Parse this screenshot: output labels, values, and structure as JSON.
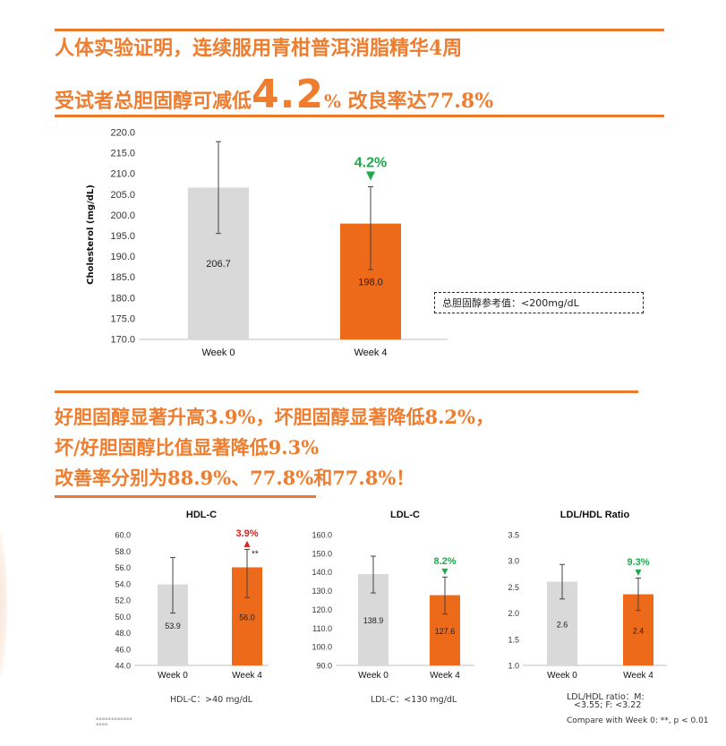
{
  "headlines": {
    "line1": "人体实验证明，连续服用青柑普洱消脂精华4周",
    "line2_prefix": "受试者总胆固醇可减低",
    "line2_big": "4.2",
    "line2_pct": "%",
    "line2_suffix": " 改良率达77.8%",
    "section2_line1": "好胆固醇显著升高3.9%，坏胆固醇显著降低8.2%，",
    "section2_line2": "坏/好胆固醇比值显著降低9.3%",
    "section2_line3": "改善率分别为88.9%、77.8%和77.8%！"
  },
  "colors": {
    "orange": "#ec6a1a",
    "headline_orange": "#ee7d2f",
    "gray_bar": "#d9d9d9",
    "green": "#1eaa4b",
    "red": "#e02020"
  },
  "reference_note": "总胆固醇参考值：<200mg/dL",
  "footnotes": {
    "hdl": "HDL-C：>40 mg/dL",
    "ldl": "LDL-C：<130 mg/dL",
    "ratio_line1": "LDL/HDL ratio：M:",
    "ratio_line2": "<3.55; F: <3.22",
    "compare": "Compare with Week 0: **, p < 0.01"
  },
  "chart_data": [
    {
      "type": "bar",
      "id": "total",
      "title": "",
      "ylabel": "Cholesterol (mg/dL)",
      "categories": [
        "Week 0",
        "Week 4"
      ],
      "values": [
        206.7,
        198.0
      ],
      "value_labels": [
        "206.7",
        "198.0"
      ],
      "errors": [
        [
          195.6,
          217.8
        ],
        [
          186.9,
          206.9
        ]
      ],
      "ylim": [
        170,
        220
      ],
      "yticks": [
        "170.0",
        "175.0",
        "180.0",
        "185.0",
        "190.0",
        "195.0",
        "200.0",
        "205.0",
        "210.0",
        "215.0",
        "220.0"
      ],
      "change_label": "4.2%",
      "change_direction": "down",
      "significance": ""
    },
    {
      "type": "bar",
      "id": "hdl",
      "title": "HDL-C",
      "ylabel": "",
      "categories": [
        "Week 0",
        "Week 4"
      ],
      "values": [
        53.9,
        56.0
      ],
      "value_labels": [
        "53.9",
        "56.0"
      ],
      "errors": [
        [
          50.4,
          57.2
        ],
        [
          52.3,
          58.2
        ]
      ],
      "ylim": [
        44,
        60
      ],
      "yticks": [
        "44.0",
        "46.0",
        "48.0",
        "50.0",
        "52.0",
        "54.0",
        "56.0",
        "58.0",
        "60.0"
      ],
      "change_label": "3.9%",
      "change_direction": "up",
      "significance": "**"
    },
    {
      "type": "bar",
      "id": "ldl",
      "title": "LDL-C",
      "ylabel": "",
      "categories": [
        "Week 0",
        "Week 4"
      ],
      "values": [
        138.9,
        127.6
      ],
      "value_labels": [
        "138.9",
        "127.6"
      ],
      "errors": [
        [
          128.8,
          148.5
        ],
        [
          117.5,
          137.3
        ]
      ],
      "ylim": [
        90,
        160
      ],
      "yticks": [
        "90.0",
        "100.0",
        "110.0",
        "120.0",
        "130.0",
        "140.0",
        "150.0",
        "160.0"
      ],
      "change_label": "8.2%",
      "change_direction": "down",
      "significance": ""
    },
    {
      "type": "bar",
      "id": "ratio",
      "title": "LDL/HDL Ratio",
      "ylabel": "",
      "categories": [
        "Week 0",
        "Week 4"
      ],
      "values": [
        2.6,
        2.36
      ],
      "value_labels": [
        "2.6",
        "2.4"
      ],
      "errors": [
        [
          2.27,
          2.93
        ],
        [
          2.05,
          2.67
        ]
      ],
      "ylim": [
        1.0,
        3.5
      ],
      "yticks": [
        "1.0",
        "1.5",
        "2.0",
        "2.5",
        "3.0",
        "3.5"
      ],
      "change_label": "9.3%",
      "change_direction": "down",
      "significance": ""
    }
  ]
}
